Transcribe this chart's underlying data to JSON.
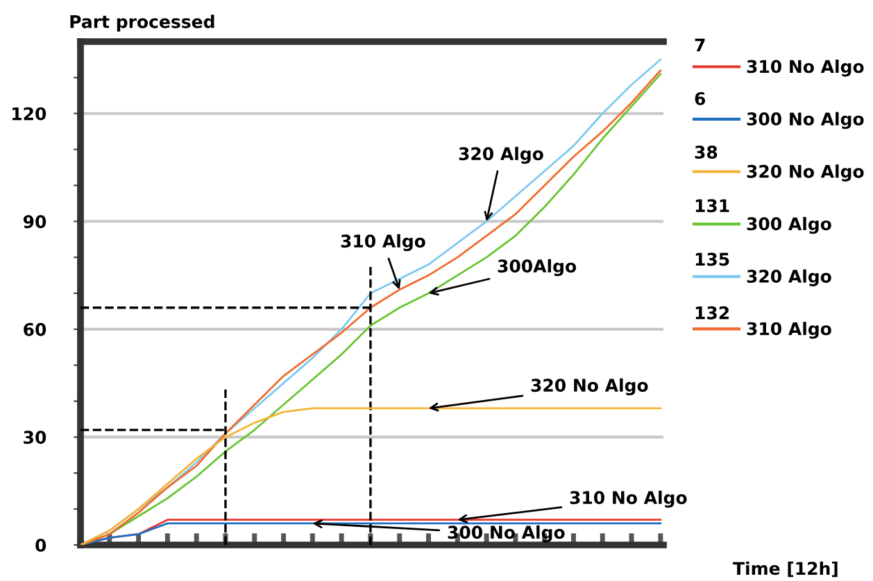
{
  "chart_data": {
    "type": "line",
    "ylabel": "Part processed",
    "xlabel": "Time [12h]",
    "categories": [
      null,
      null,
      null,
      null,
      null,
      null,
      null,
      null,
      null,
      null,
      null,
      null,
      null,
      null,
      null,
      null,
      null,
      null,
      null,
      null,
      null
    ],
    "series": [
      {
        "name": "310 No Algo",
        "color": "#e8352e",
        "values": [
          0,
          2,
          3,
          7,
          7,
          7,
          7,
          7,
          7,
          7,
          7,
          7,
          7,
          7,
          7,
          7,
          7,
          7,
          7,
          7,
          7
        ]
      },
      {
        "name": "300 No Algo",
        "color": "#1f6fc2",
        "values": [
          0,
          2,
          3,
          6,
          6,
          6,
          6,
          6,
          6,
          6,
          6,
          6,
          6,
          6,
          6,
          6,
          6,
          6,
          6,
          6,
          6
        ]
      },
      {
        "name": "320 No Algo",
        "color": "#f5b335",
        "values": [
          0,
          4,
          10,
          17,
          24,
          30,
          34,
          37,
          38,
          38,
          38,
          38,
          38,
          38,
          38,
          38,
          38,
          38,
          38,
          38,
          38
        ]
      },
      {
        "name": "300 Algo",
        "color": "#66c430",
        "values": [
          0,
          3,
          8,
          13,
          19,
          26,
          32,
          39,
          46,
          53,
          61,
          66,
          70,
          75,
          80,
          86,
          94,
          103,
          113,
          122,
          131
        ]
      },
      {
        "name": "320 Algo",
        "color": "#7ec8f0",
        "values": [
          0,
          4,
          10,
          16,
          23,
          31,
          38,
          45,
          52,
          60,
          70,
          74,
          78,
          84,
          90,
          97,
          104,
          111,
          120,
          128,
          135
        ]
      },
      {
        "name": "310 Algo",
        "color": "#f26a2c",
        "values": [
          0,
          3,
          9,
          16,
          22,
          31,
          39,
          47,
          53,
          59,
          66,
          71,
          75,
          80,
          86,
          92,
          100,
          108,
          115,
          123,
          132
        ]
      }
    ],
    "ylim": [
      0,
      140
    ],
    "yticks": [
      0,
      {
        "value": 10,
        "label": null
      },
      {
        "value": 20,
        "label": null
      },
      30,
      {
        "value": 40,
        "label": null
      },
      {
        "value": 50,
        "label": null
      },
      60,
      {
        "value": 70,
        "label": null
      },
      {
        "value": 80,
        "label": null
      },
      90,
      {
        "value": 100,
        "label": null
      },
      {
        "value": 110,
        "label": null
      },
      120,
      {
        "value": 130,
        "label": null
      }
    ],
    "grid": "y",
    "legend": "right",
    "line_style": "solid",
    "marker": "none",
    "ref_lines": [
      {
        "axis": "y",
        "value": 32,
        "color": "#000000",
        "line_style": "dashed"
      },
      {
        "axis": "y",
        "value": 66,
        "color": "#000000",
        "line_style": "dashed"
      }
    ],
    "annotations": [
      "310 No Algo",
      "300 No Algo",
      "320 No Algo",
      "300Algo",
      "320 Algo",
      "310 Algo",
      "7",
      "6",
      "38",
      "131",
      "135",
      "132"
    ]
  }
}
